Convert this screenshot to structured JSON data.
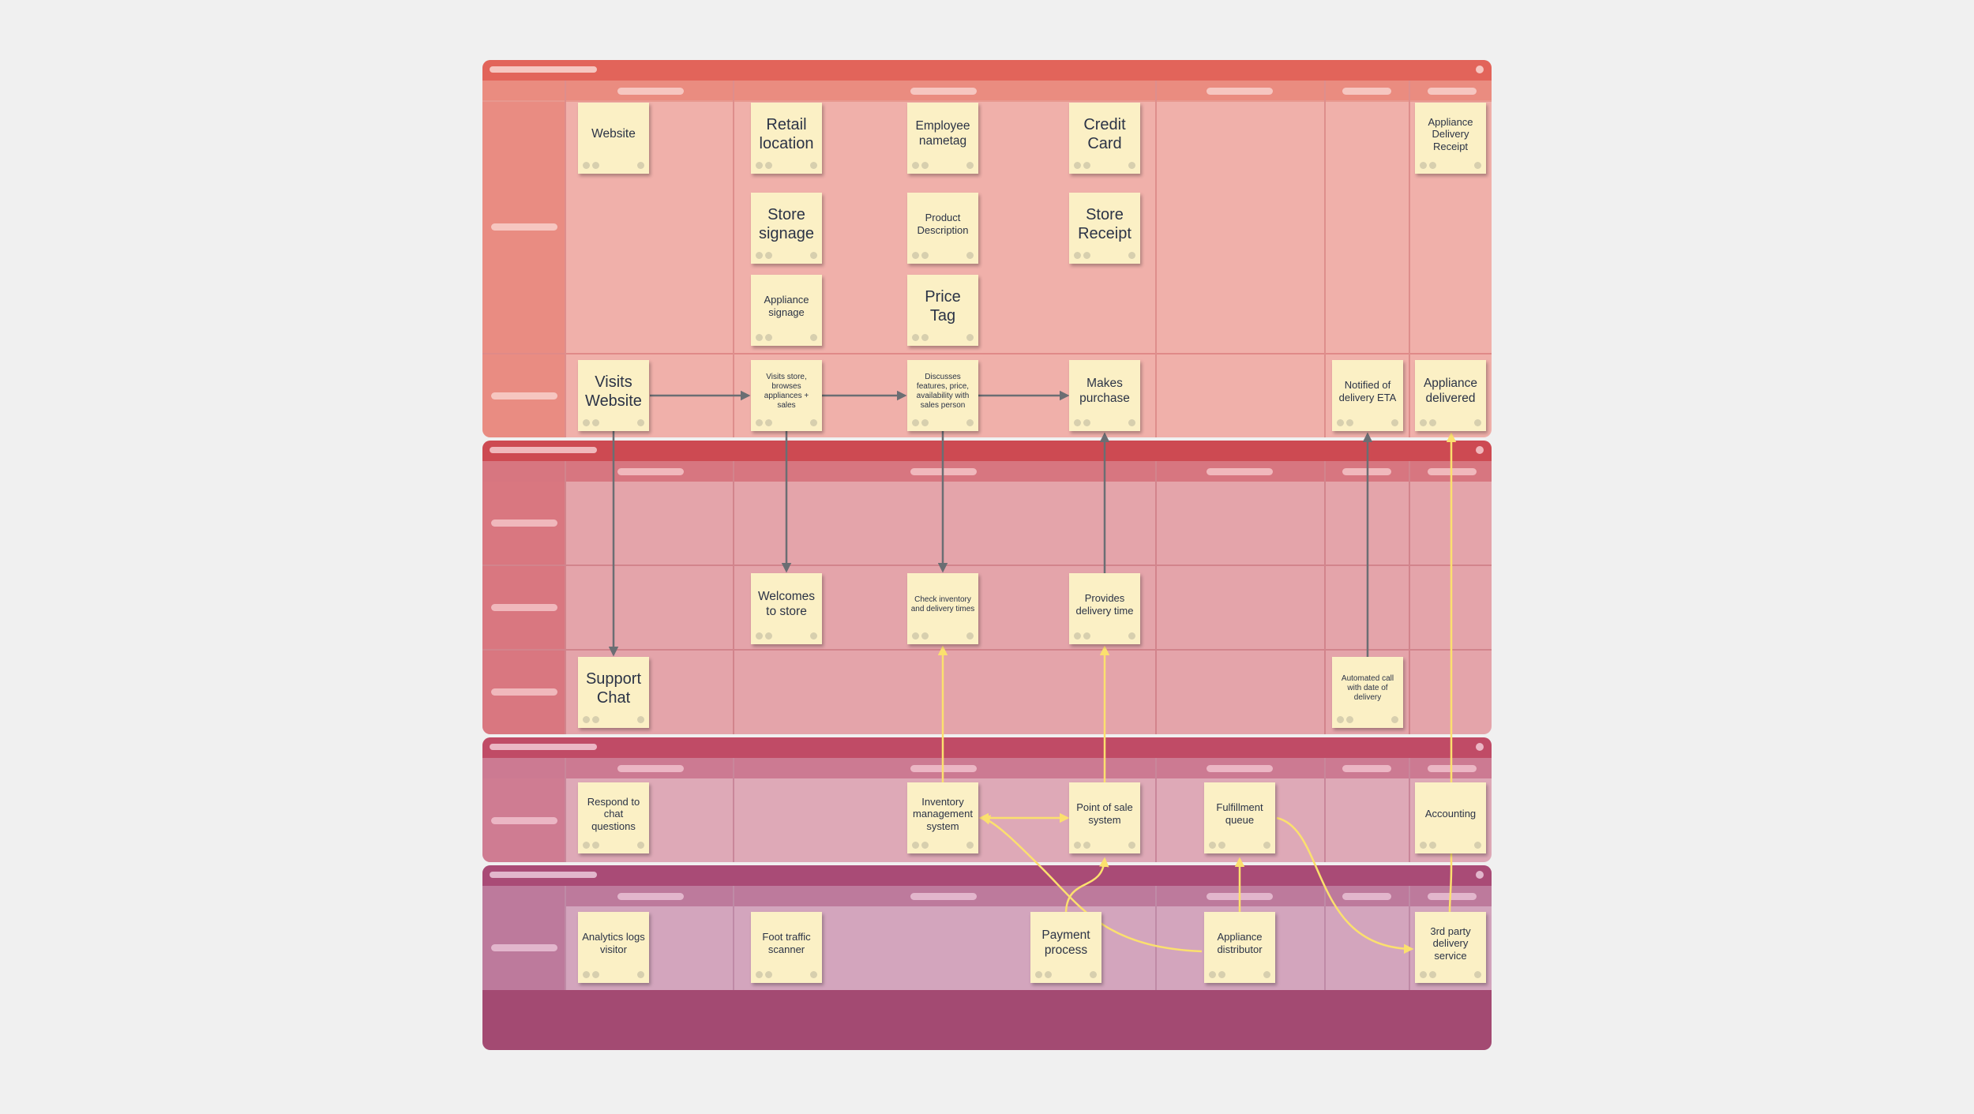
{
  "colors": {
    "background": "#f0f0f0",
    "arrow_gray": "#6b6e73",
    "arrow_yellow": "#fbe06e",
    "sticky": "#fbf0c5",
    "lane_frontstage": "#f0b0aa",
    "lane_backstage": "#e4a4aa",
    "lane_support": "#dea9b7",
    "lane_partners": "#d3a5bd",
    "footer": "#a34a72"
  },
  "stickies": {
    "website": "Website",
    "retail_location": "Retail location",
    "employee_nametag": "Employee nametag",
    "credit_card": "Credit Card",
    "delivery_receipt": "Appliance Delivery Receipt",
    "store_signage": "Store signage",
    "product_description": "Product Description",
    "store_receipt": "Store Receipt",
    "appliance_signage": "Appliance signage",
    "price_tag": "Price Tag",
    "visits_website": "Visits Website",
    "visits_store": "Visits store, browses appliances + sales",
    "discusses_features": "Discusses features, price, availability with sales person",
    "makes_purchase": "Makes purchase",
    "notified_eta": "Notified of delivery ETA",
    "appliance_delivered": "Appliance delivered",
    "welcomes": "Welcomes to store",
    "check_inventory": "Check inventory and delivery times",
    "provides_delivery": "Provides delivery time",
    "support_chat": "Support Chat",
    "automated_call": "Automated call with date of delivery",
    "respond_chat": "Respond to chat questions",
    "inventory_system": "Inventory management system",
    "pos_system": "Point of sale system",
    "fulfillment_queue": "Fulfillment queue",
    "accounting": "Accounting",
    "analytics": "Analytics logs visitor",
    "foot_traffic": "Foot traffic scanner",
    "payment_process": "Payment process",
    "appliance_distributor": "Appliance distributor",
    "third_party_delivery": "3rd party delivery service"
  }
}
